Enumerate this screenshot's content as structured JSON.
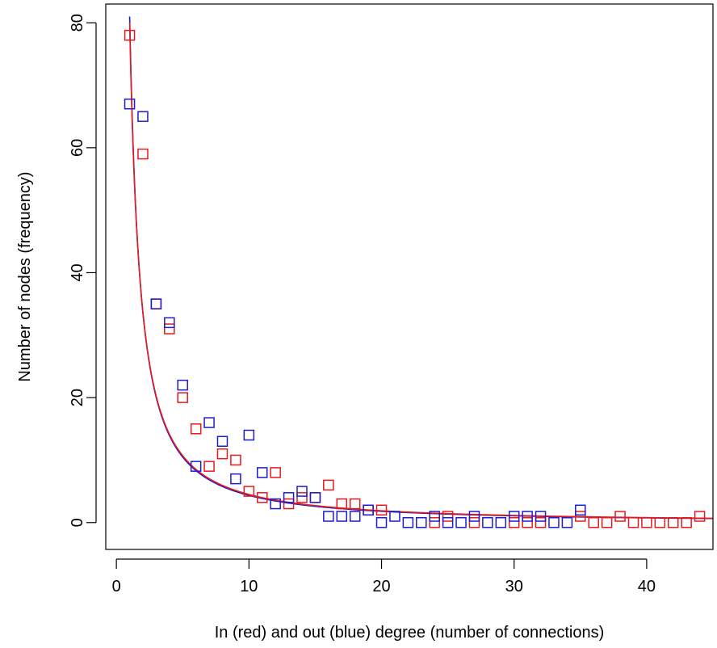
{
  "chart_data": {
    "type": "scatter",
    "title": "",
    "xlabel": "In (red) and out (blue) degree (number of connections)",
    "ylabel": "Number of nodes (frequency)",
    "xlim": [
      -0.8,
      45
    ],
    "ylim": [
      -4.3,
      83
    ],
    "xticks": [
      0,
      10,
      20,
      30,
      40
    ],
    "yticks": [
      0,
      20,
      40,
      60,
      80
    ],
    "grid": false,
    "colors": {
      "in": "#e41a1c",
      "out": "#1c1cd0",
      "axis": "#000000"
    },
    "series": [
      {
        "key": "in",
        "color": "#e41a1c",
        "points": [
          [
            1,
            78
          ],
          [
            2,
            59
          ],
          [
            3,
            35
          ],
          [
            4,
            31
          ],
          [
            5,
            20
          ],
          [
            6,
            15
          ],
          [
            7,
            9
          ],
          [
            8,
            11
          ],
          [
            9,
            10
          ],
          [
            10,
            5
          ],
          [
            11,
            4
          ],
          [
            12,
            8
          ],
          [
            13,
            3
          ],
          [
            14,
            4
          ],
          [
            15,
            4
          ],
          [
            16,
            6
          ],
          [
            17,
            3
          ],
          [
            18,
            3
          ],
          [
            19,
            2
          ],
          [
            20,
            2
          ],
          [
            24,
            0
          ],
          [
            25,
            1
          ],
          [
            27,
            0
          ],
          [
            30,
            0
          ],
          [
            31,
            0
          ],
          [
            32,
            0
          ],
          [
            35,
            1
          ],
          [
            36,
            0
          ],
          [
            37,
            0
          ],
          [
            38,
            1
          ],
          [
            39,
            0
          ],
          [
            40,
            0
          ],
          [
            41,
            0
          ],
          [
            42,
            0
          ],
          [
            43,
            0
          ],
          [
            44,
            1
          ]
        ],
        "fit": {
          "a": 80,
          "b": 1.25
        }
      },
      {
        "key": "out",
        "color": "#1c1cd0",
        "points": [
          [
            1,
            67
          ],
          [
            2,
            65
          ],
          [
            3,
            35
          ],
          [
            4,
            32
          ],
          [
            5,
            22
          ],
          [
            6,
            9
          ],
          [
            7,
            16
          ],
          [
            8,
            13
          ],
          [
            9,
            7
          ],
          [
            10,
            14
          ],
          [
            11,
            8
          ],
          [
            12,
            3
          ],
          [
            13,
            4
          ],
          [
            14,
            5
          ],
          [
            15,
            4
          ],
          [
            16,
            1
          ],
          [
            17,
            1
          ],
          [
            18,
            1
          ],
          [
            19,
            2
          ],
          [
            20,
            0
          ],
          [
            21,
            1
          ],
          [
            22,
            0
          ],
          [
            23,
            0
          ],
          [
            24,
            1
          ],
          [
            25,
            0
          ],
          [
            26,
            0
          ],
          [
            27,
            1
          ],
          [
            28,
            0
          ],
          [
            29,
            0
          ],
          [
            30,
            1
          ],
          [
            31,
            1
          ],
          [
            32,
            1
          ],
          [
            33,
            0
          ],
          [
            34,
            0
          ],
          [
            35,
            2
          ]
        ],
        "fit": {
          "a": 81,
          "b": 1.27
        }
      }
    ]
  }
}
